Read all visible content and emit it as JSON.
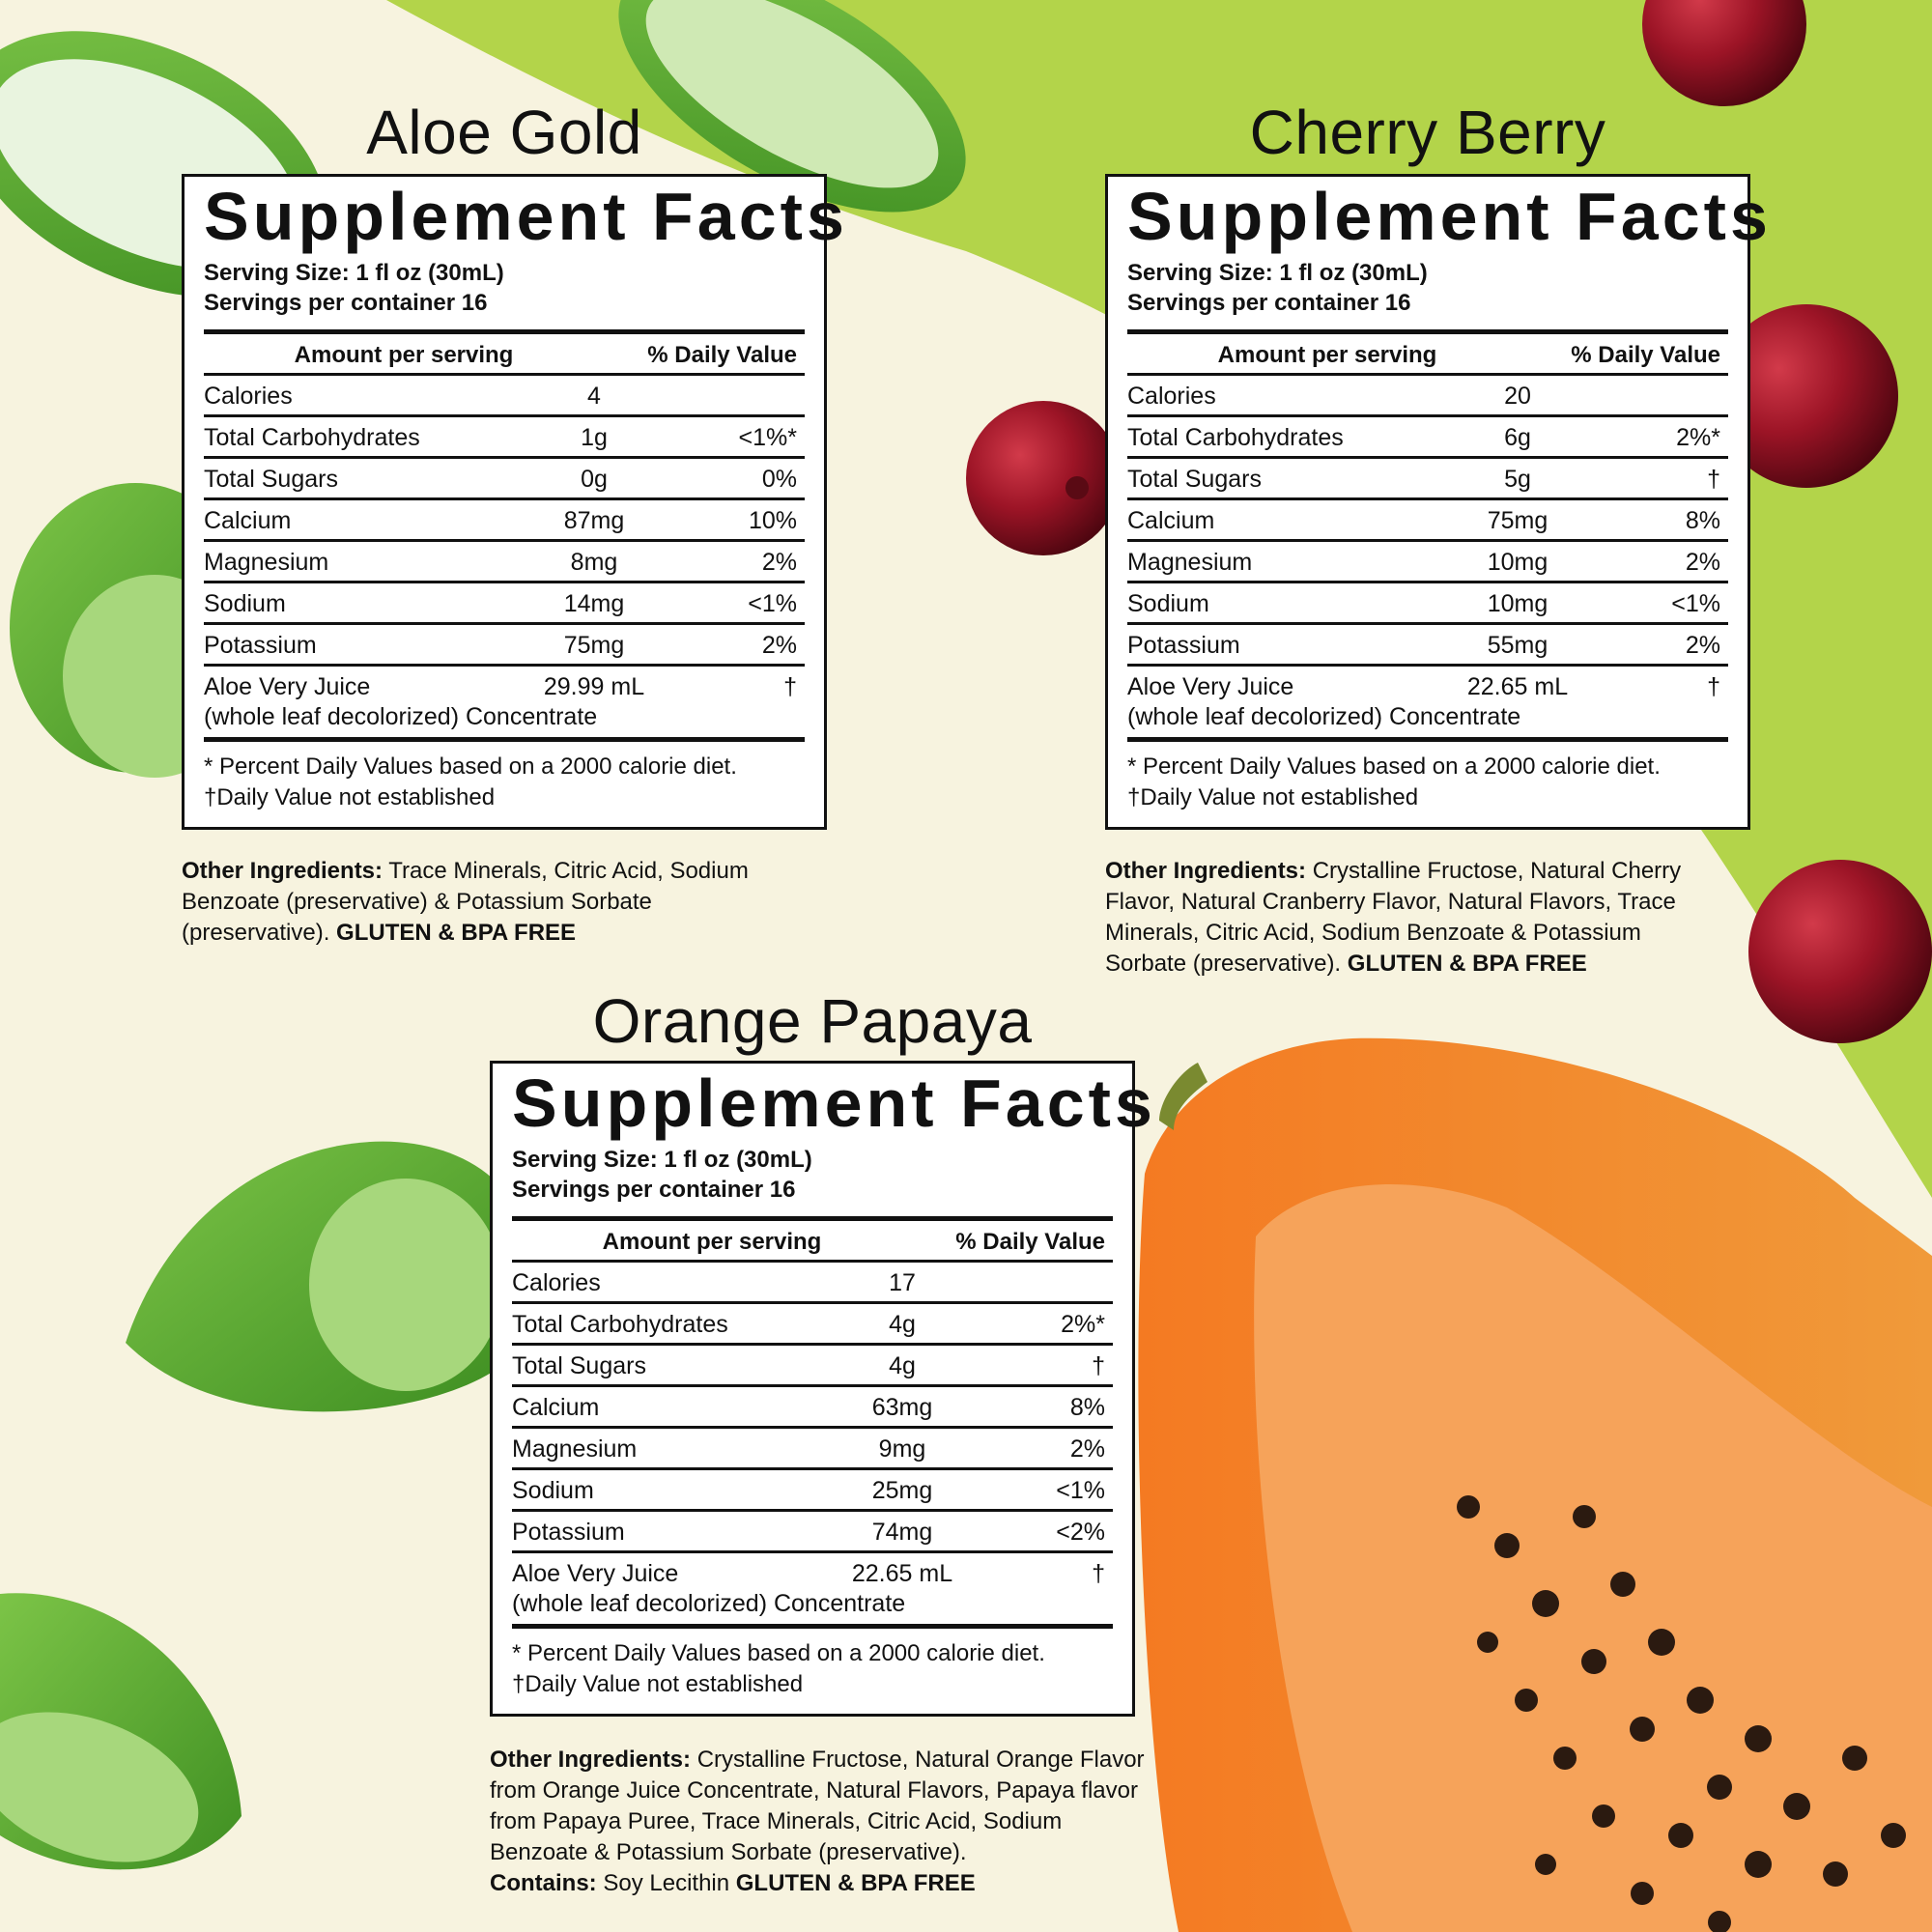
{
  "labels": {
    "supplement_facts": "Supplement Facts",
    "serving_size_label": "Serving Size:",
    "servings_label": "Servings per container",
    "amount_per_serving": "Amount per serving",
    "daily_value": "% Daily Value",
    "note_percent": "* Percent Daily Values based on a 2000 calorie diet.",
    "note_dagger": "†Daily Value not established",
    "other_ingredients_label": "Other Ingredients:",
    "gluten_bpa": "GLUTEN & BPA FREE",
    "contains_label": "Contains:"
  },
  "products": [
    {
      "title": "Aloe Gold",
      "serving_size": "1 fl oz (30mL)",
      "servings": "16",
      "rows": [
        {
          "name": "Calories",
          "amount": "4",
          "dv": ""
        },
        {
          "name": "Total Carbohydrates",
          "amount": "1g",
          "dv": "<1%*"
        },
        {
          "name": "Total Sugars",
          "amount": "0g",
          "dv": "0%"
        },
        {
          "name": "Calcium",
          "amount": "87mg",
          "dv": "10%"
        },
        {
          "name": "Magnesium",
          "amount": "8mg",
          "dv": "2%"
        },
        {
          "name": "Sodium",
          "amount": "14mg",
          "dv": "<1%"
        },
        {
          "name": "Potassium",
          "amount": "75mg",
          "dv": "2%"
        }
      ],
      "juice": {
        "name1": "Aloe Very Juice",
        "name2": "(whole leaf decolorized) Concentrate",
        "amount": "29.99 mL",
        "dv": "†"
      },
      "ingredients": "Trace Minerals, Citric Acid, Sodium Benzoate (preservative) & Potassium Sorbate (preservative).",
      "contains": ""
    },
    {
      "title": "Cherry Berry",
      "serving_size": "1 fl oz (30mL)",
      "servings": "16",
      "rows": [
        {
          "name": "Calories",
          "amount": "20",
          "dv": ""
        },
        {
          "name": "Total Carbohydrates",
          "amount": "6g",
          "dv": "2%*"
        },
        {
          "name": "Total Sugars",
          "amount": "5g",
          "dv": "†"
        },
        {
          "name": "Calcium",
          "amount": "75mg",
          "dv": "8%"
        },
        {
          "name": "Magnesium",
          "amount": "10mg",
          "dv": "2%"
        },
        {
          "name": "Sodium",
          "amount": "10mg",
          "dv": "<1%"
        },
        {
          "name": "Potassium",
          "amount": "55mg",
          "dv": "2%"
        }
      ],
      "juice": {
        "name1": "Aloe Very Juice",
        "name2": "(whole leaf decolorized) Concentrate",
        "amount": "22.65 mL",
        "dv": "†"
      },
      "ingredients": "Crystalline Fructose, Natural Cherry Flavor, Natural Cranberry Flavor, Natural Flavors, Trace Minerals, Citric Acid, Sodium Benzoate & Potassium Sorbate (preservative).",
      "contains": ""
    },
    {
      "title": "Orange Papaya",
      "serving_size": "1 fl oz (30mL)",
      "servings": "16",
      "rows": [
        {
          "name": "Calories",
          "amount": "17",
          "dv": ""
        },
        {
          "name": "Total Carbohydrates",
          "amount": "4g",
          "dv": "2%*"
        },
        {
          "name": "Total Sugars",
          "amount": "4g",
          "dv": "†"
        },
        {
          "name": "Calcium",
          "amount": "63mg",
          "dv": "8%"
        },
        {
          "name": "Magnesium",
          "amount": "9mg",
          "dv": "2%"
        },
        {
          "name": "Sodium",
          "amount": "25mg",
          "dv": "<1%"
        },
        {
          "name": "Potassium",
          "amount": "74mg",
          "dv": "<2%"
        }
      ],
      "juice": {
        "name1": "Aloe Very Juice",
        "name2": "(whole leaf decolorized) Concentrate",
        "amount": "22.65 mL",
        "dv": "†"
      },
      "ingredients": "Crystalline Fructose, Natural Orange Flavor from Orange Juice Concentrate, Natural Flavors, Papaya flavor from Papaya Puree, Trace Minerals, Citric Acid, Sodium Benzoate & Potassium Sorbate (preservative).",
      "contains": "Soy Lecithin"
    }
  ],
  "colors": {
    "background": "#f7f3df",
    "green_band": "#b3d44a",
    "aloe_green": "#6cb33a",
    "cherry_red": "#8e1020",
    "papaya_orange": "#f07a2a"
  }
}
